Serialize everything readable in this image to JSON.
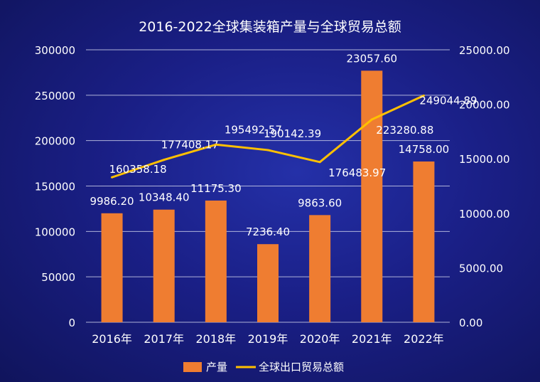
{
  "chart_data": {
    "type": "bar",
    "title": "2016-2022全球集装箱产量与全球贸易总额",
    "categories": [
      "2016年",
      "2017年",
      "2018年",
      "2019年",
      "2020年",
      "2021年",
      "2022年"
    ],
    "series": [
      {
        "name": "产量",
        "type": "bar",
        "axis": "left",
        "values": [
          120000,
          124000,
          134000,
          86000,
          118000,
          277000,
          177000
        ],
        "labels": [
          "9986.20",
          "10348.40",
          "11175.30",
          "7236.40",
          "9863.60",
          "23057.60",
          "14758.00"
        ]
      },
      {
        "name": "全球出口贸易总额",
        "type": "line",
        "axis": "right",
        "values": [
          13300,
          14900,
          16300,
          15800,
          14700,
          18600,
          20800
        ],
        "labels": [
          "160358.18",
          "177408.17",
          "195492.57",
          "190142.39",
          "176483.97",
          "223280.88",
          "249044.89"
        ]
      }
    ],
    "left_axis": {
      "ylim": [
        0,
        300000
      ],
      "ticks": [
        "0",
        "50000",
        "100000",
        "150000",
        "200000",
        "250000",
        "300000"
      ]
    },
    "right_axis": {
      "ylim": [
        0,
        25000
      ],
      "ticks": [
        "0.00",
        "5000.00",
        "10000.00",
        "15000.00",
        "20000.00",
        "25000.00"
      ]
    },
    "grid": true,
    "legend_position": "bottom",
    "colors": {
      "bar": "#ef7d31",
      "line": "#ffc000",
      "text": "#ffffff",
      "grid": "#c9cce8"
    }
  }
}
